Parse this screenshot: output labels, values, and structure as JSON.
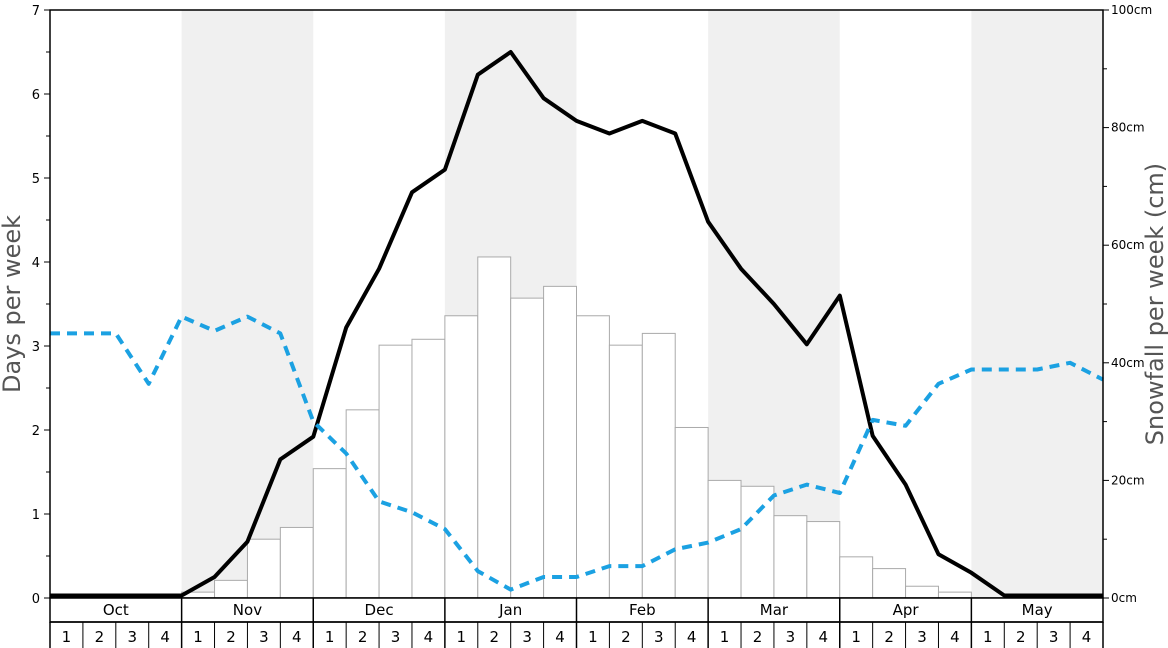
{
  "chart_data": {
    "type": "bar",
    "months": [
      "Oct",
      "Nov",
      "Dec",
      "Jan",
      "Feb",
      "Mar",
      "Apr",
      "May"
    ],
    "weeks": [
      "1",
      "2",
      "3",
      "4"
    ],
    "ylabel": "Days per week",
    "y2label": "Snowfall per week (cm)",
    "ylim": [
      0,
      7
    ],
    "y_ticks": [
      "0",
      "1",
      "2",
      "3",
      "4",
      "5",
      "6",
      "7"
    ],
    "y2lim": [
      0,
      100
    ],
    "y2_ticks": [
      "0cm",
      "20cm",
      "40cm",
      "60cm",
      "80cm",
      "100cm"
    ],
    "series": [
      {
        "kind": "bar",
        "axis": "right",
        "color": "#ffffff",
        "stroke": "#aaaaaa",
        "values": [
          0,
          0,
          0,
          0,
          1,
          3,
          10,
          12,
          22,
          32,
          43,
          44,
          48,
          58,
          51,
          53,
          48,
          43,
          45,
          29,
          20,
          19,
          14,
          13,
          7,
          5,
          2,
          1,
          0,
          0,
          0,
          0
        ]
      },
      {
        "kind": "line",
        "axis": "left",
        "color": "#000000",
        "style": "solid",
        "values": [
          0.03,
          0.03,
          0.03,
          0.03,
          0.03,
          0.25,
          0.67,
          1.65,
          1.92,
          3.22,
          3.92,
          4.83,
          5.1,
          6.23,
          6.5,
          5.95,
          5.68,
          5.53,
          5.68,
          5.53,
          4.48,
          3.92,
          3.5,
          3.02,
          3.6,
          1.93,
          1.35,
          0.52,
          0.3,
          0.03,
          0.03,
          0.03,
          0.03
        ]
      },
      {
        "kind": "line",
        "axis": "left",
        "color": "#1ba1e2",
        "style": "dashed",
        "values": [
          3.15,
          3.15,
          3.15,
          2.55,
          3.35,
          3.18,
          3.35,
          3.15,
          2.1,
          1.72,
          1.15,
          1.02,
          0.82,
          0.32,
          0.1,
          0.25,
          0.25,
          0.38,
          0.38,
          0.58,
          0.66,
          0.82,
          1.22,
          1.35,
          1.25,
          2.12,
          2.05,
          2.55,
          2.72,
          2.72,
          2.72,
          2.8,
          2.6
        ]
      }
    ],
    "shaded_months": [
      "Nov",
      "Jan",
      "Mar",
      "May"
    ],
    "grid": false
  }
}
